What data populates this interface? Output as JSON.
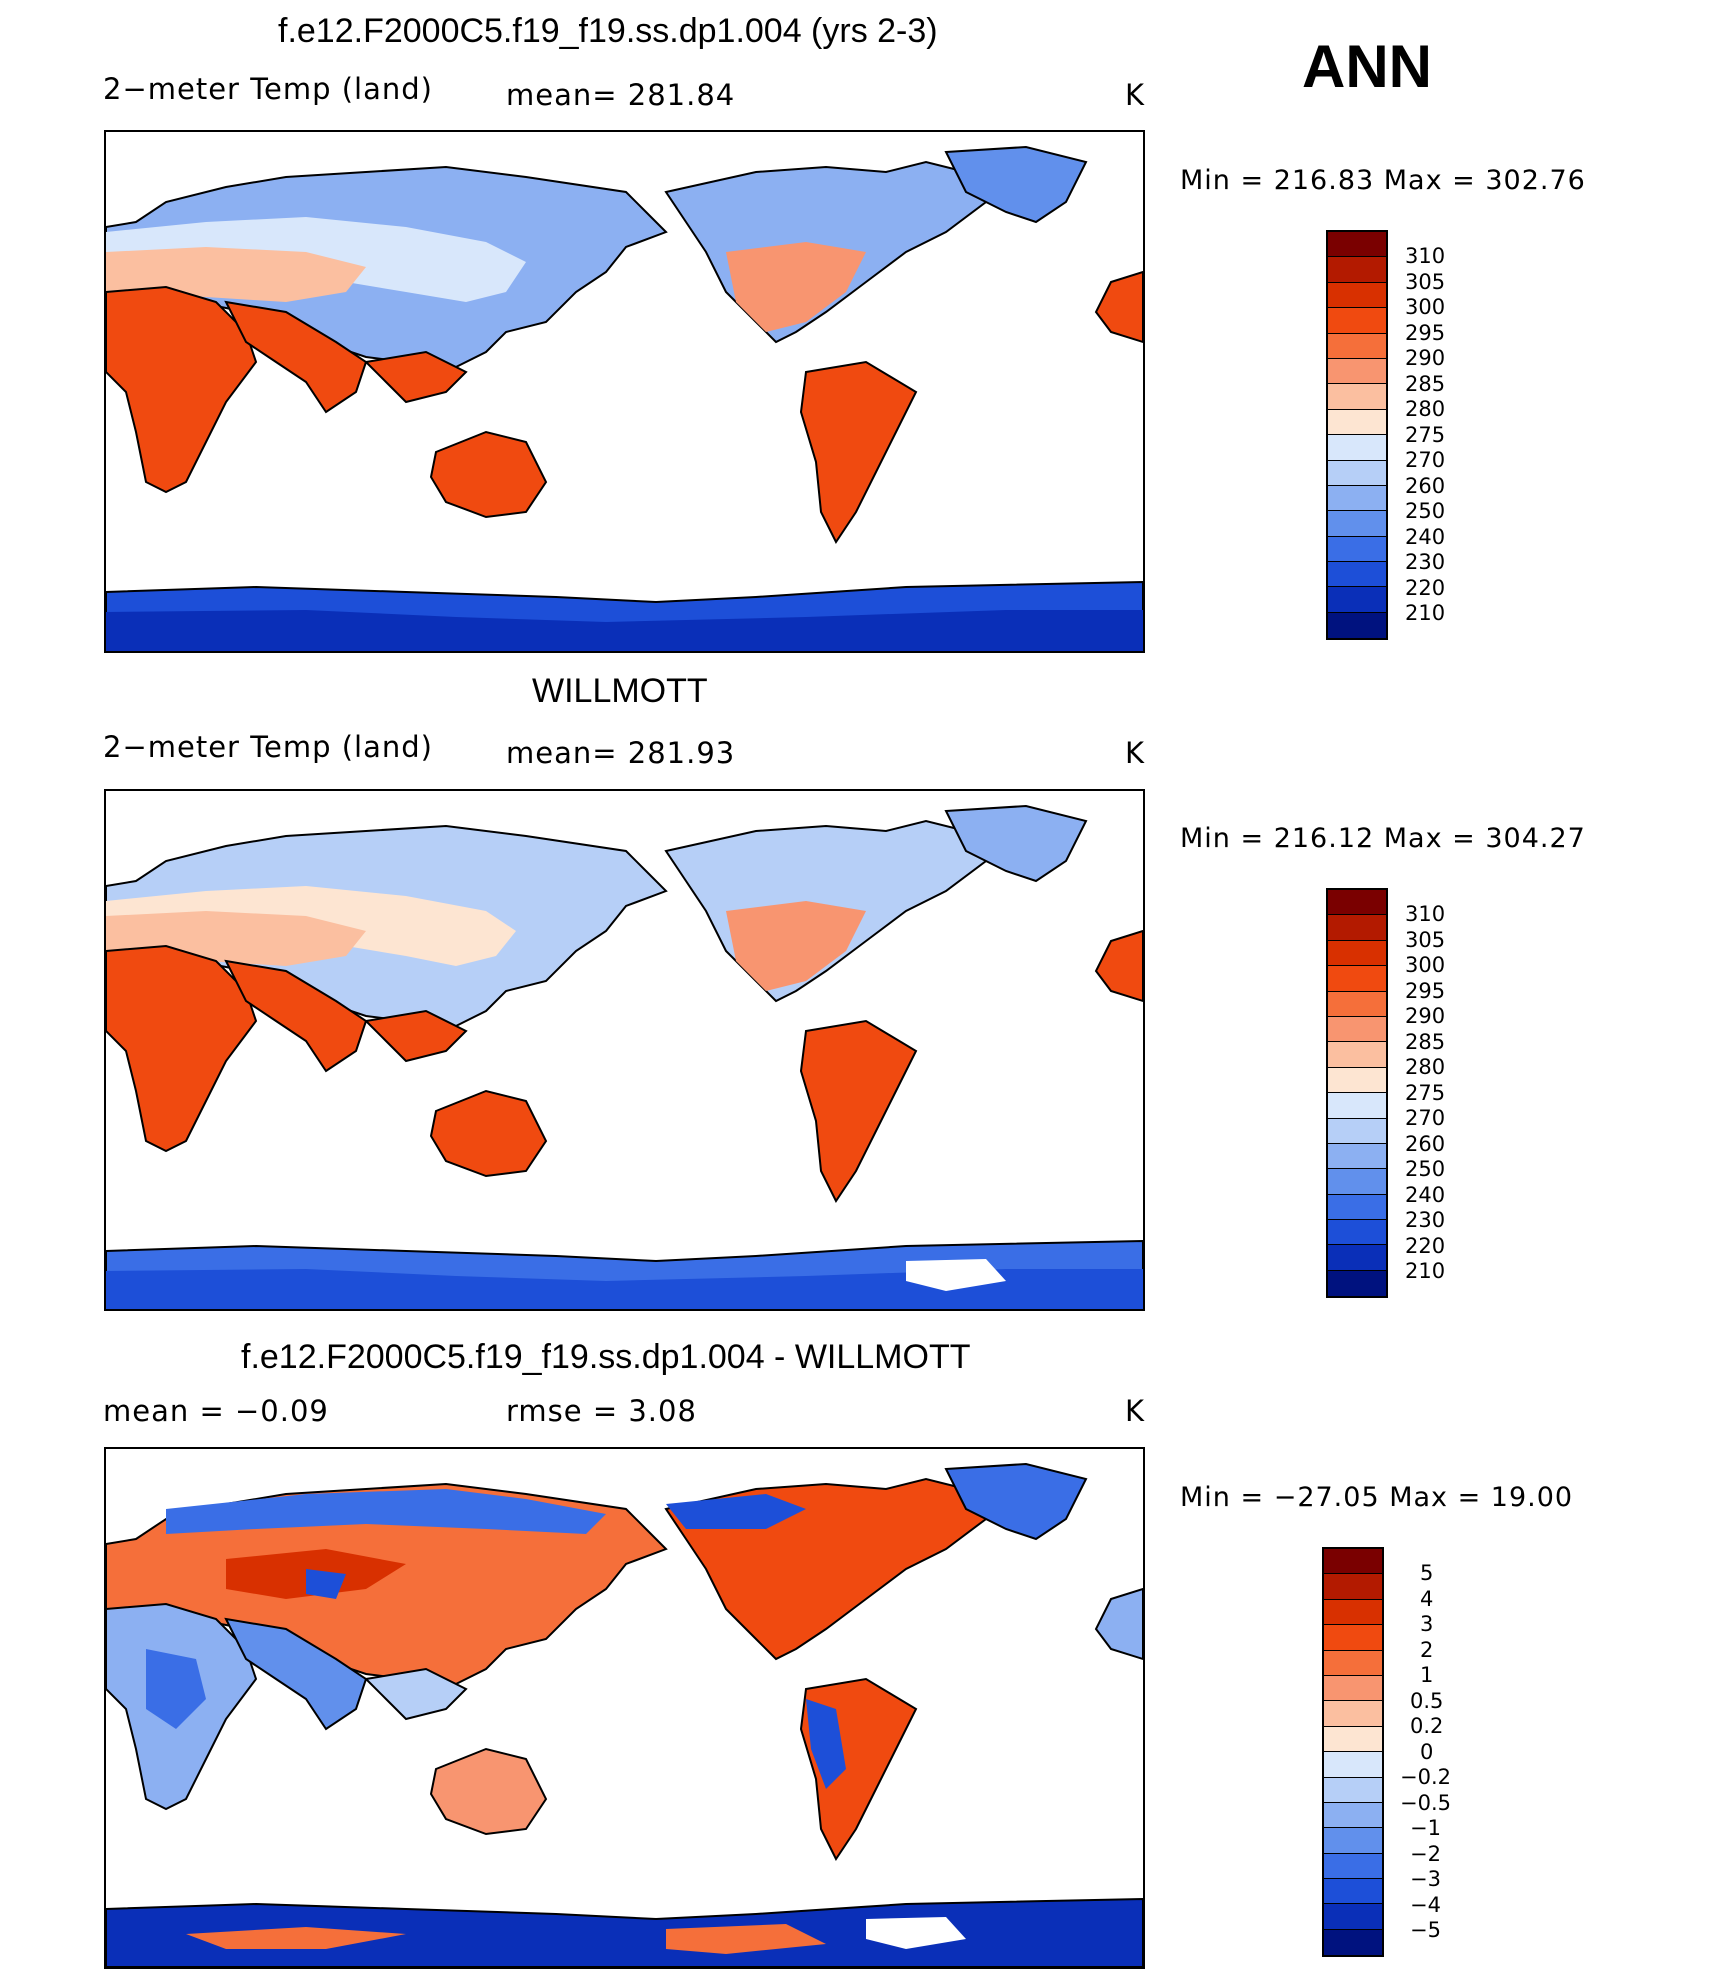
{
  "season": "ANN",
  "panels": [
    {
      "title": "f.e12.F2000C5.f19_f19.ss.dp1.004 (yrs 2-3)",
      "left_label": "2−meter Temp (land)",
      "mid_label": "mean=  281.84",
      "units": "K",
      "minmax": "Min  =  216.83  Max  =  302.76",
      "colorbar_labels": [
        "310",
        "305",
        "300",
        "295",
        "290",
        "285",
        "280",
        "275",
        "270",
        "260",
        "250",
        "240",
        "230",
        "220",
        "210"
      ]
    },
    {
      "title": "WILLMOTT",
      "left_label": "2−meter Temp (land)",
      "mid_label": "mean=  281.93",
      "units": "K",
      "minmax": "Min  =  216.12  Max  =  304.27",
      "colorbar_labels": [
        "310",
        "305",
        "300",
        "295",
        "290",
        "285",
        "280",
        "275",
        "270",
        "260",
        "250",
        "240",
        "230",
        "220",
        "210"
      ]
    },
    {
      "title": "f.e12.F2000C5.f19_f19.ss.dp1.004 - WILLMOTT",
      "left_label": "mean  =     −0.09",
      "mid_label": "rmse  =     3.08",
      "units": "K",
      "minmax": "Min  =  −27.05  Max  =     19.00",
      "colorbar_labels": [
        "5",
        "4",
        "3",
        "2",
        "1",
        "0.5",
        "0.2",
        "0",
        "−0.2",
        "−0.5",
        "−1",
        "−2",
        "−3",
        "−4",
        "−5"
      ]
    }
  ],
  "colors": {
    "palette": [
      "#7a0000",
      "#b31a00",
      "#d83000",
      "#f04a10",
      "#f56f3a",
      "#f89570",
      "#fbbfa0",
      "#fde5d2",
      "#d8e7fb",
      "#b6cff7",
      "#8cb0f2",
      "#6190ec",
      "#3a6ee6",
      "#1d4fd8",
      "#0a2fb8",
      "#00127f"
    ]
  }
}
